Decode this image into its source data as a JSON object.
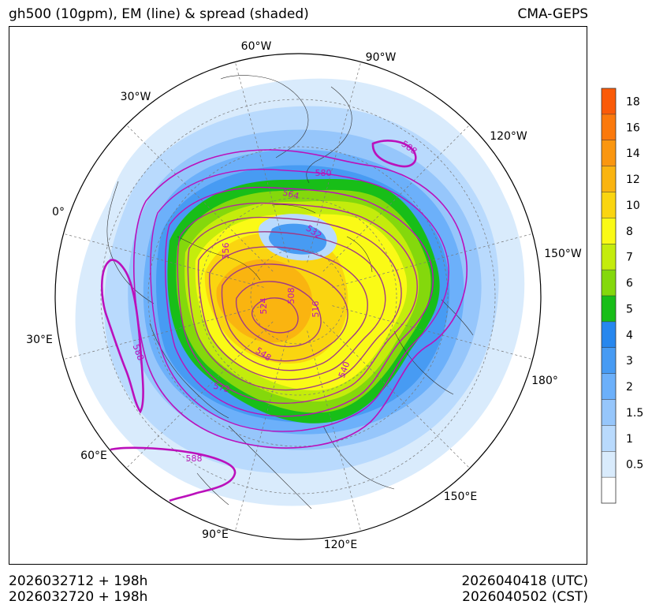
{
  "header": {
    "title": "gh500 (10gpm), EM (line) & spread (shaded)",
    "source": "CMA-GEPS"
  },
  "footer": {
    "init_utc": "2026032712 + 198h",
    "init_cst": "2026032720 + 198h",
    "valid_utc": "2026040418 (UTC)",
    "valid_cst": "2026040502 (CST)"
  },
  "map": {
    "projection": "north-polar-stereographic",
    "longitude_labels": [
      "60°W",
      "90°W",
      "30°W",
      "120°W",
      "0°",
      "150°W",
      "30°E",
      "180°",
      "60°E",
      "150°E",
      "90°E",
      "120°E"
    ],
    "contour_labels": [
      "588",
      "580",
      "564",
      "532",
      "556",
      "508",
      "524",
      "516",
      "548",
      "540",
      "572",
      "588",
      "588"
    ],
    "contour_color": "#bb10bb"
  },
  "colorbar": {
    "levels": [
      "0.5",
      "1",
      "1.5",
      "2",
      "3",
      "4",
      "5",
      "6",
      "7",
      "8",
      "10",
      "12",
      "14",
      "16",
      "18"
    ],
    "colors": [
      "#ffffff",
      "#d9ebfc",
      "#b9dafd",
      "#96c6fb",
      "#6cb0fa",
      "#479bf3",
      "#2787ee",
      "#18be18",
      "#84d80c",
      "#c4ec0c",
      "#fafa16",
      "#fad510",
      "#fab410",
      "#fa960f",
      "#fb790c",
      "#fa5a08"
    ]
  }
}
